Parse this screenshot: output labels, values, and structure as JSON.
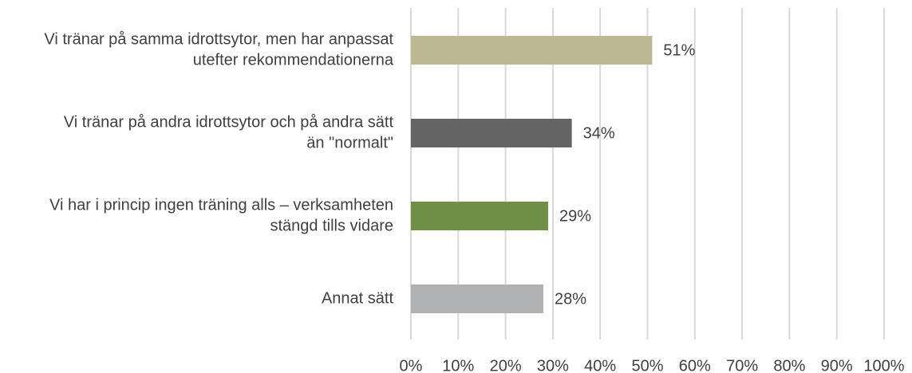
{
  "chart_data": {
    "type": "bar",
    "orientation": "horizontal",
    "categories": [
      [
        "Vi tränar på samma idrottsytor, men har anpassat",
        "utefter rekommendationerna"
      ],
      [
        "Vi tränar på andra idrottsytor och på andra sätt",
        "än \"normalt\""
      ],
      [
        "Vi har i princip ingen träning alls – verksamheten",
        "stängd tills vidare"
      ],
      [
        "Annat sätt"
      ]
    ],
    "values": [
      51,
      34,
      29,
      28
    ],
    "value_labels": [
      "51%",
      "34%",
      "29%",
      "28%"
    ],
    "colors": [
      "#bcb894",
      "#646464",
      "#6f8f45",
      "#b0b1b3"
    ],
    "xlim": [
      0,
      100
    ],
    "xticks": [
      {
        "value": 0,
        "label": "0%"
      },
      {
        "value": 10,
        "label": "10%"
      },
      {
        "value": 20,
        "label": "20%"
      },
      {
        "value": 30,
        "label": "30%"
      },
      {
        "value": 40,
        "label": "40%"
      },
      {
        "value": 50,
        "label": "50%"
      },
      {
        "value": 60,
        "label": "60%"
      },
      {
        "value": 70,
        "label": "70%"
      },
      {
        "value": 80,
        "label": "80%"
      },
      {
        "value": 90,
        "label": "90%"
      },
      {
        "value": 100,
        "label": "100%"
      }
    ],
    "grid": true
  }
}
